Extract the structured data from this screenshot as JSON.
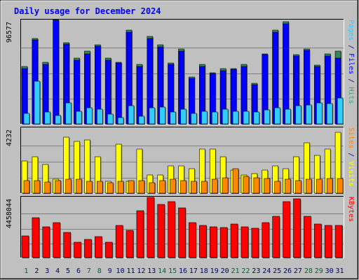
{
  "chart_data": {
    "type": "bar",
    "title": "Daily usage for December 2024",
    "categories": [
      "1",
      "2",
      "3",
      "4",
      "5",
      "6",
      "7",
      "8",
      "9",
      "10",
      "11",
      "12",
      "13",
      "14",
      "15",
      "16",
      "17",
      "18",
      "19",
      "20",
      "21",
      "22",
      "23",
      "24",
      "25",
      "26",
      "27",
      "28",
      "29",
      "30",
      "31"
    ],
    "weekend_days": [
      "1",
      "7",
      "8",
      "14",
      "15",
      "21",
      "22",
      "28",
      "29"
    ],
    "panels": [
      {
        "id": "pages-files-hits",
        "max_label": "96577",
        "ymax": 96577,
        "right_label": [
          {
            "text": "Pages",
            "color": "#33ccff"
          },
          {
            "text": " / ",
            "color": "#000099"
          },
          {
            "text": "Files",
            "color": "#0000ff"
          },
          {
            "text": " / ",
            "color": "#000099"
          },
          {
            "text": "Hits",
            "color": "#33aa77"
          }
        ],
        "series": [
          {
            "name": "Hits",
            "color": "#2e8b57",
            "values": [
              54000,
              80000,
              58000,
              98000,
              76000,
              62000,
              68000,
              74000,
              62000,
              58000,
              88000,
              56000,
              82000,
              74000,
              57000,
              70000,
              44000,
              56000,
              48000,
              52000,
              52000,
              56000,
              38000,
              66000,
              88000,
              96000,
              65000,
              70000,
              55000,
              66000,
              68000
            ]
          },
          {
            "name": "Files",
            "color": "#0000ff",
            "values": [
              52000,
              79000,
              56000,
              97000,
              75000,
              60000,
              66000,
              73000,
              60000,
              57000,
              86000,
              54000,
              80000,
              72000,
              56000,
              68000,
              43000,
              54000,
              47000,
              50000,
              51000,
              54000,
              37000,
              65000,
              86000,
              94000,
              64000,
              69000,
              54000,
              64000,
              62000
            ]
          },
          {
            "name": "Pages",
            "color": "#33ccff",
            "values": [
              10000,
              40000,
              11000,
              8000,
              20000,
              12000,
              15000,
              14000,
              9000,
              6000,
              17000,
              7000,
              15000,
              16000,
              11000,
              14000,
              10000,
              12000,
              11000,
              14000,
              12000,
              12000,
              11000,
              13000,
              15000,
              14000,
              17000,
              18000,
              20000,
              19000,
              24000
            ]
          }
        ]
      },
      {
        "id": "visits-sites",
        "max_label": "4232",
        "ymax": 4232,
        "right_label": [
          {
            "text": "Sites",
            "color": "#ff8800"
          },
          {
            "text": " / ",
            "color": "#000099"
          },
          {
            "text": "Visits",
            "color": "#ffff00"
          }
        ],
        "series": [
          {
            "name": "Visits",
            "color": "#ffff00",
            "values": [
              2100,
              2400,
              1900,
              900,
              3700,
              3400,
              3500,
              2400,
              800,
              3200,
              800,
              2900,
              1200,
              1200,
              1800,
              1800,
              1600,
              2900,
              2900,
              2400,
              1500,
              1200,
              1300,
              1500,
              1800,
              1600,
              2400,
              3300,
              2500,
              2900,
              4000
            ]
          },
          {
            "name": "Sites",
            "color": "#ff8800",
            "values": [
              850,
              850,
              750,
              850,
              900,
              900,
              800,
              800,
              700,
              800,
              850,
              850,
              700,
              850,
              900,
              850,
              800,
              800,
              900,
              1000,
              1600,
              1100,
              1000,
              950,
              800,
              900,
              850,
              900,
              900,
              950,
              950
            ]
          }
        ]
      },
      {
        "id": "kbytes",
        "max_label": "4458044",
        "ymax": 4458044,
        "right_label": [
          {
            "text": "KBytes",
            "color": "#ff0000"
          }
        ],
        "series": [
          {
            "name": "KBytes",
            "color": "#ff0000",
            "values": [
              1600000,
              3000000,
              2300000,
              2600000,
              1900000,
              1150000,
              1350000,
              1550000,
              1150000,
              2400000,
              2050000,
              3500000,
              4500000,
              4000000,
              4200000,
              3700000,
              2600000,
              2400000,
              2300000,
              2250000,
              2500000,
              2300000,
              2200000,
              2600000,
              3100000,
              4200000,
              4400000,
              3100000,
              2500000,
              2400000,
              2400000
            ]
          }
        ]
      }
    ]
  }
}
